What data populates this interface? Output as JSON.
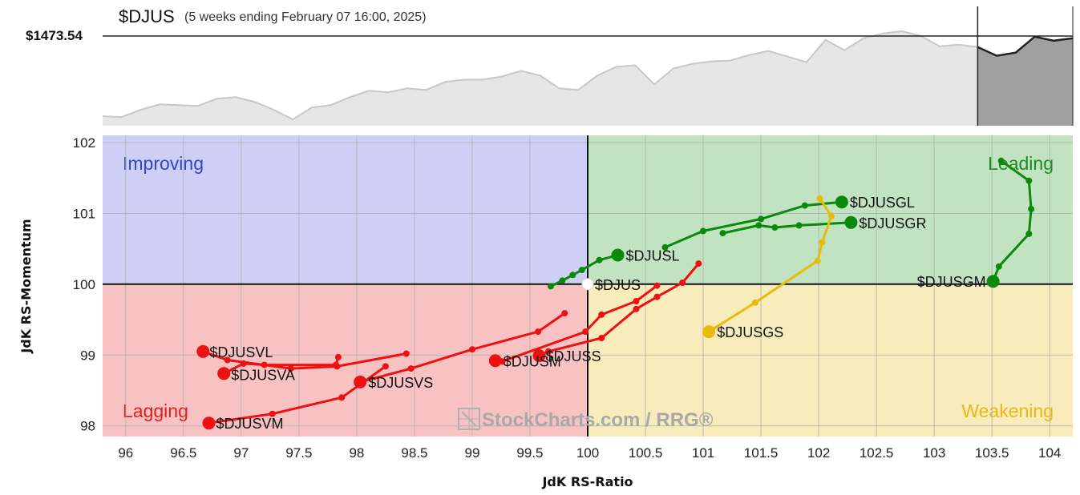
{
  "header": {
    "symbol": "$DJUS",
    "subtitle": "(5 weeks ending February 07 16:00, 2025)",
    "price_label": "$1473.54"
  },
  "watermark": "StockCharts.com / RRG®",
  "chart_data": [
    {
      "type": "area",
      "title": "$DJUS",
      "subtitle": "(5 weeks ending February 07 16:00, 2025)",
      "current_value_label": "$1473.54",
      "note": "normalized relative price history; last segment shaded (tail period)",
      "values": [
        0.12,
        0.11,
        0.2,
        0.27,
        0.26,
        0.25,
        0.34,
        0.36,
        0.3,
        0.2,
        0.08,
        0.23,
        0.26,
        0.36,
        0.44,
        0.42,
        0.47,
        0.45,
        0.55,
        0.58,
        0.58,
        0.62,
        0.69,
        0.63,
        0.47,
        0.45,
        0.63,
        0.74,
        0.76,
        0.52,
        0.72,
        0.78,
        0.81,
        0.82,
        0.89,
        0.94,
        0.87,
        0.8,
        1.08,
        0.95,
        1.1,
        1.16,
        1.19,
        1.13,
        1.0,
        1.02,
        0.99,
        0.88,
        0.92,
        1.12,
        1.07,
        1.1
      ],
      "shaded_from_index": 46,
      "colors": {
        "history_fill": "#e6e6e6",
        "history_line": "#c8c8c8",
        "tail_fill": "#a0a0a0",
        "tail_line": "#222222"
      }
    },
    {
      "type": "scatter",
      "title": "",
      "xlabel": "JdK RS-Ratio",
      "ylabel": "JdK RS-Momentum",
      "xlim": [
        95.8,
        104.2
      ],
      "ylim": [
        97.85,
        102.1
      ],
      "xticks": [
        96,
        96.5,
        97,
        97.5,
        98,
        98.5,
        99,
        99.5,
        100,
        100.5,
        101,
        101.5,
        102,
        102.5,
        103,
        103.5,
        104
      ],
      "yticks": [
        98,
        99,
        100,
        101,
        102
      ],
      "grid": true,
      "center": [
        100,
        100
      ],
      "quadrants": [
        {
          "name": "Improving",
          "position": "top-left",
          "fill": "#cdd0f4",
          "text_color": "#3146c8"
        },
        {
          "name": "Leading",
          "position": "top-right",
          "fill": "#c2e3c2",
          "text_color": "#1e8a1e"
        },
        {
          "name": "Weakening",
          "position": "bottom-right",
          "fill": "#f8ecbc",
          "text_color": "#e9b910"
        },
        {
          "name": "Lagging",
          "position": "bottom-left",
          "fill": "#f8c2c2",
          "text_color": "#e01e1e"
        }
      ],
      "benchmark": {
        "name": "$DJUS",
        "x": 100,
        "y": 100
      },
      "series": [
        {
          "name": "$DJUSGL",
          "color": "#0a8a0a",
          "x": [
            100.67,
            101.0,
            101.5,
            101.88,
            102.2
          ],
          "y": [
            100.52,
            100.75,
            100.92,
            101.11,
            101.16
          ]
        },
        {
          "name": "$DJUSGR",
          "color": "#0a8a0a",
          "x": [
            101.17,
            101.48,
            101.62,
            101.83,
            102.28
          ],
          "y": [
            100.72,
            100.83,
            100.8,
            100.83,
            100.87
          ]
        },
        {
          "name": "$DJUSL",
          "color": "#0a8a0a",
          "x": [
            99.68,
            99.78,
            99.87,
            99.95,
            100.1,
            100.26
          ],
          "y": [
            99.97,
            100.05,
            100.13,
            100.2,
            100.34,
            100.41
          ]
        },
        {
          "name": "$DJUSGM",
          "color": "#0a8a0a",
          "x": [
            103.58,
            103.82,
            103.84,
            103.82,
            103.56,
            103.51
          ],
          "y": [
            101.74,
            101.46,
            101.06,
            100.71,
            100.25,
            100.04
          ]
        },
        {
          "name": "$DJUSGS",
          "color": "#e9bc0c",
          "x": [
            102.01,
            102.11,
            102.03,
            101.99,
            101.45,
            101.05
          ],
          "y": [
            101.21,
            100.96,
            100.59,
            100.33,
            99.74,
            99.33
          ]
        },
        {
          "name": "$DJUSS",
          "color": "#ee1111",
          "x": [
            100.96,
            100.82,
            100.6,
            100.42,
            100.12,
            99.66,
            99.58
          ],
          "y": [
            100.29,
            100.02,
            99.82,
            99.65,
            99.24,
            99.05,
            98.99
          ]
        },
        {
          "name": "$DJUSM",
          "color": "#ee1111",
          "x": [
            100.6,
            100.42,
            100.12,
            99.98,
            99.26,
            99.2
          ],
          "y": [
            99.98,
            99.76,
            99.57,
            99.33,
            98.91,
            98.92
          ]
        },
        {
          "name": "$DJUSVS",
          "color": "#ee1111",
          "x": [
            99.8,
            99.57,
            99.0,
            98.47,
            98.03
          ],
          "y": [
            99.59,
            99.33,
            99.08,
            98.81,
            98.62
          ]
        },
        {
          "name": "$DJUSVL",
          "color": "#ee1111",
          "x": [
            98.43,
            97.83,
            97.43,
            96.88,
            96.67
          ],
          "y": [
            99.02,
            98.84,
            98.81,
            98.93,
            99.05
          ]
        },
        {
          "name": "$DJUSVA",
          "color": "#ee1111",
          "x": [
            97.84,
            97.82,
            97.2,
            97.02,
            96.85
          ],
          "y": [
            98.97,
            98.86,
            98.86,
            98.88,
            98.74
          ]
        },
        {
          "name": "$DJUSVM",
          "color": "#ee1111",
          "x": [
            98.25,
            97.87,
            97.27,
            96.72
          ],
          "y": [
            98.84,
            98.4,
            98.17,
            98.04
          ]
        }
      ]
    }
  ]
}
